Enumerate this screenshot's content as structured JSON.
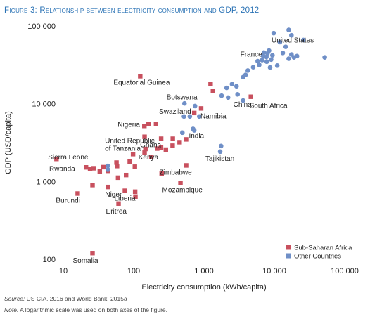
{
  "figure": {
    "title": "Figure 3: Relationship between electricity consumption and GDP, 2012",
    "source_label": "Source:",
    "source_text": " US CIA, 2016 and World Bank, 2015a",
    "note_label": "Note:",
    "note_text": " A logarithmic scale was used on both axes of the figure."
  },
  "colors": {
    "ssa": "#c8505e",
    "other": "#6f8fc7",
    "title": "#2b73b5"
  },
  "chart_data": {
    "type": "scatter",
    "xlabel": "Electricity consumption (kWh/capita)",
    "ylabel": "GDP (USD/capita)",
    "x_scale": "log",
    "y_scale": "log",
    "xlim": [
      10,
      100000
    ],
    "ylim": [
      100,
      100000
    ],
    "x_ticks": [
      {
        "value": 10,
        "label": "10"
      },
      {
        "value": 100,
        "label": "100"
      },
      {
        "value": 1000,
        "label": "1 000"
      },
      {
        "value": 10000,
        "label": "10 000"
      },
      {
        "value": 100000,
        "label": "100 000"
      }
    ],
    "y_ticks": [
      {
        "value": 100,
        "label": "100"
      },
      {
        "value": 1000,
        "label": "1 000"
      },
      {
        "value": 10000,
        "label": "10 000"
      },
      {
        "value": 100000,
        "label": "100 000"
      }
    ],
    "grid": false,
    "legend": "bottom-right",
    "series": [
      {
        "name": "Sub-Saharan Africa",
        "marker": "square",
        "color": "#c8505e",
        "points": [
          {
            "x": 8,
            "y": 1950
          },
          {
            "x": 21,
            "y": 1520
          },
          {
            "x": 24,
            "y": 1450
          },
          {
            "x": 27,
            "y": 1480
          },
          {
            "x": 33,
            "y": 1350
          },
          {
            "x": 37,
            "y": 1530
          },
          {
            "x": 43,
            "y": 1370
          },
          {
            "x": 58,
            "y": 1580
          },
          {
            "x": 57,
            "y": 1750
          },
          {
            "x": 16,
            "y": 700
          },
          {
            "x": 26,
            "y": 900
          },
          {
            "x": 43,
            "y": 850
          },
          {
            "x": 60,
            "y": 1120
          },
          {
            "x": 78,
            "y": 1210
          },
          {
            "x": 104,
            "y": 1550
          },
          {
            "x": 75,
            "y": 760
          },
          {
            "x": 105,
            "y": 740
          },
          {
            "x": 106,
            "y": 640
          },
          {
            "x": 61,
            "y": 520
          },
          {
            "x": 26,
            "y": 120
          },
          {
            "x": 88,
            "y": 1810
          },
          {
            "x": 98,
            "y": 2250
          },
          {
            "x": 143,
            "y": 2350
          },
          {
            "x": 147,
            "y": 2620
          },
          {
            "x": 178,
            "y": 2070
          },
          {
            "x": 216,
            "y": 2650
          },
          {
            "x": 245,
            "y": 2730
          },
          {
            "x": 287,
            "y": 2570
          },
          {
            "x": 358,
            "y": 2890
          },
          {
            "x": 163,
            "y": 5470
          },
          {
            "x": 142,
            "y": 5180
          },
          {
            "x": 208,
            "y": 5520
          },
          {
            "x": 143,
            "y": 3760
          },
          {
            "x": 246,
            "y": 3550
          },
          {
            "x": 360,
            "y": 3550
          },
          {
            "x": 450,
            "y": 3200
          },
          {
            "x": 556,
            "y": 3480
          },
          {
            "x": 557,
            "y": 1610
          },
          {
            "x": 463,
            "y": 960
          },
          {
            "x": 727,
            "y": 7600
          },
          {
            "x": 911,
            "y": 8700
          },
          {
            "x": 1340,
            "y": 14600
          },
          {
            "x": 1240,
            "y": 17900
          },
          {
            "x": 4640,
            "y": 12300
          },
          {
            "x": 124,
            "y": 22600
          },
          {
            "x": 250,
            "y": 1270
          }
        ],
        "labels": [
          {
            "text": "Equatorial Guinea",
            "x": 124,
            "y": 22600
          },
          {
            "text": "Botswana",
            "x": 1340,
            "y": 14600
          },
          {
            "text": "South Africa",
            "x": 4640,
            "y": 12300
          },
          {
            "text": "Swaziland",
            "x": 727,
            "y": 7600
          },
          {
            "text": "Namibia",
            "x": 911,
            "y": 8700
          },
          {
            "text": "Nigeria",
            "x": 142,
            "y": 5180
          },
          {
            "text": "Ghana",
            "x": 246,
            "y": 3550
          },
          {
            "text": "United Republic of Tanzania",
            "x": 98,
            "y": 2250
          },
          {
            "text": "Kenya",
            "x": 147,
            "y": 2620
          },
          {
            "text": "Sierra Leone",
            "x": 21,
            "y": 1520
          },
          {
            "text": "Rwanda",
            "x": 24,
            "y": 1450
          },
          {
            "text": "Zimbabwe",
            "x": 557,
            "y": 1610
          },
          {
            "text": "Mozambique",
            "x": 463,
            "y": 960
          },
          {
            "text": "Burundi",
            "x": 16,
            "y": 700
          },
          {
            "text": "Niger",
            "x": 43,
            "y": 850
          },
          {
            "text": "Liberia",
            "x": 75,
            "y": 760
          },
          {
            "text": "Eritrea",
            "x": 61,
            "y": 520
          },
          {
            "text": "Somalia",
            "x": 26,
            "y": 120
          }
        ]
      },
      {
        "name": "Other Countries",
        "marker": "circle",
        "color": "#6f8fc7",
        "points": [
          {
            "x": 43,
            "y": 1590
          },
          {
            "x": 43,
            "y": 1420
          },
          {
            "x": 528,
            "y": 10100
          },
          {
            "x": 519,
            "y": 6850
          },
          {
            "x": 629,
            "y": 6850
          },
          {
            "x": 745,
            "y": 9350
          },
          {
            "x": 857,
            "y": 6850
          },
          {
            "x": 699,
            "y": 4750
          },
          {
            "x": 727,
            "y": 4550
          },
          {
            "x": 493,
            "y": 4250
          },
          {
            "x": 1750,
            "y": 2860
          },
          {
            "x": 1700,
            "y": 2420
          },
          {
            "x": 1780,
            "y": 12700
          },
          {
            "x": 2100,
            "y": 16000
          },
          {
            "x": 2500,
            "y": 17900
          },
          {
            "x": 2900,
            "y": 16800
          },
          {
            "x": 3600,
            "y": 22000
          },
          {
            "x": 3900,
            "y": 23500
          },
          {
            "x": 3000,
            "y": 13200
          },
          {
            "x": 3600,
            "y": 11000
          },
          {
            "x": 2200,
            "y": 12000
          },
          {
            "x": 4200,
            "y": 26700
          },
          {
            "x": 5000,
            "y": 29500
          },
          {
            "x": 5800,
            "y": 35300
          },
          {
            "x": 6100,
            "y": 31600
          },
          {
            "x": 6700,
            "y": 36400
          },
          {
            "x": 6900,
            "y": 41400
          },
          {
            "x": 7100,
            "y": 45500
          },
          {
            "x": 7700,
            "y": 40000
          },
          {
            "x": 7800,
            "y": 34800
          },
          {
            "x": 8000,
            "y": 44500
          },
          {
            "x": 8400,
            "y": 48200
          },
          {
            "x": 9000,
            "y": 37000
          },
          {
            "x": 9400,
            "y": 42000
          },
          {
            "x": 8700,
            "y": 29300
          },
          {
            "x": 11000,
            "y": 31000
          },
          {
            "x": 9800,
            "y": 81000
          },
          {
            "x": 12000,
            "y": 62000
          },
          {
            "x": 13200,
            "y": 45000
          },
          {
            "x": 14500,
            "y": 54000
          },
          {
            "x": 16000,
            "y": 38000
          },
          {
            "x": 16000,
            "y": 89000
          },
          {
            "x": 17500,
            "y": 76000
          },
          {
            "x": 17500,
            "y": 43000
          },
          {
            "x": 19000,
            "y": 39500
          },
          {
            "x": 21000,
            "y": 41000
          },
          {
            "x": 26000,
            "y": 66000
          },
          {
            "x": 52000,
            "y": 39500
          }
        ],
        "labels": [
          {
            "text": "United States",
            "x": 13200,
            "y": 45000
          },
          {
            "text": "France",
            "x": 6700,
            "y": 36400
          },
          {
            "text": "China",
            "x": 3600,
            "y": 11000
          },
          {
            "text": "India",
            "x": 699,
            "y": 4750
          },
          {
            "text": "Tajikistan",
            "x": 1700,
            "y": 2420
          }
        ]
      }
    ]
  }
}
